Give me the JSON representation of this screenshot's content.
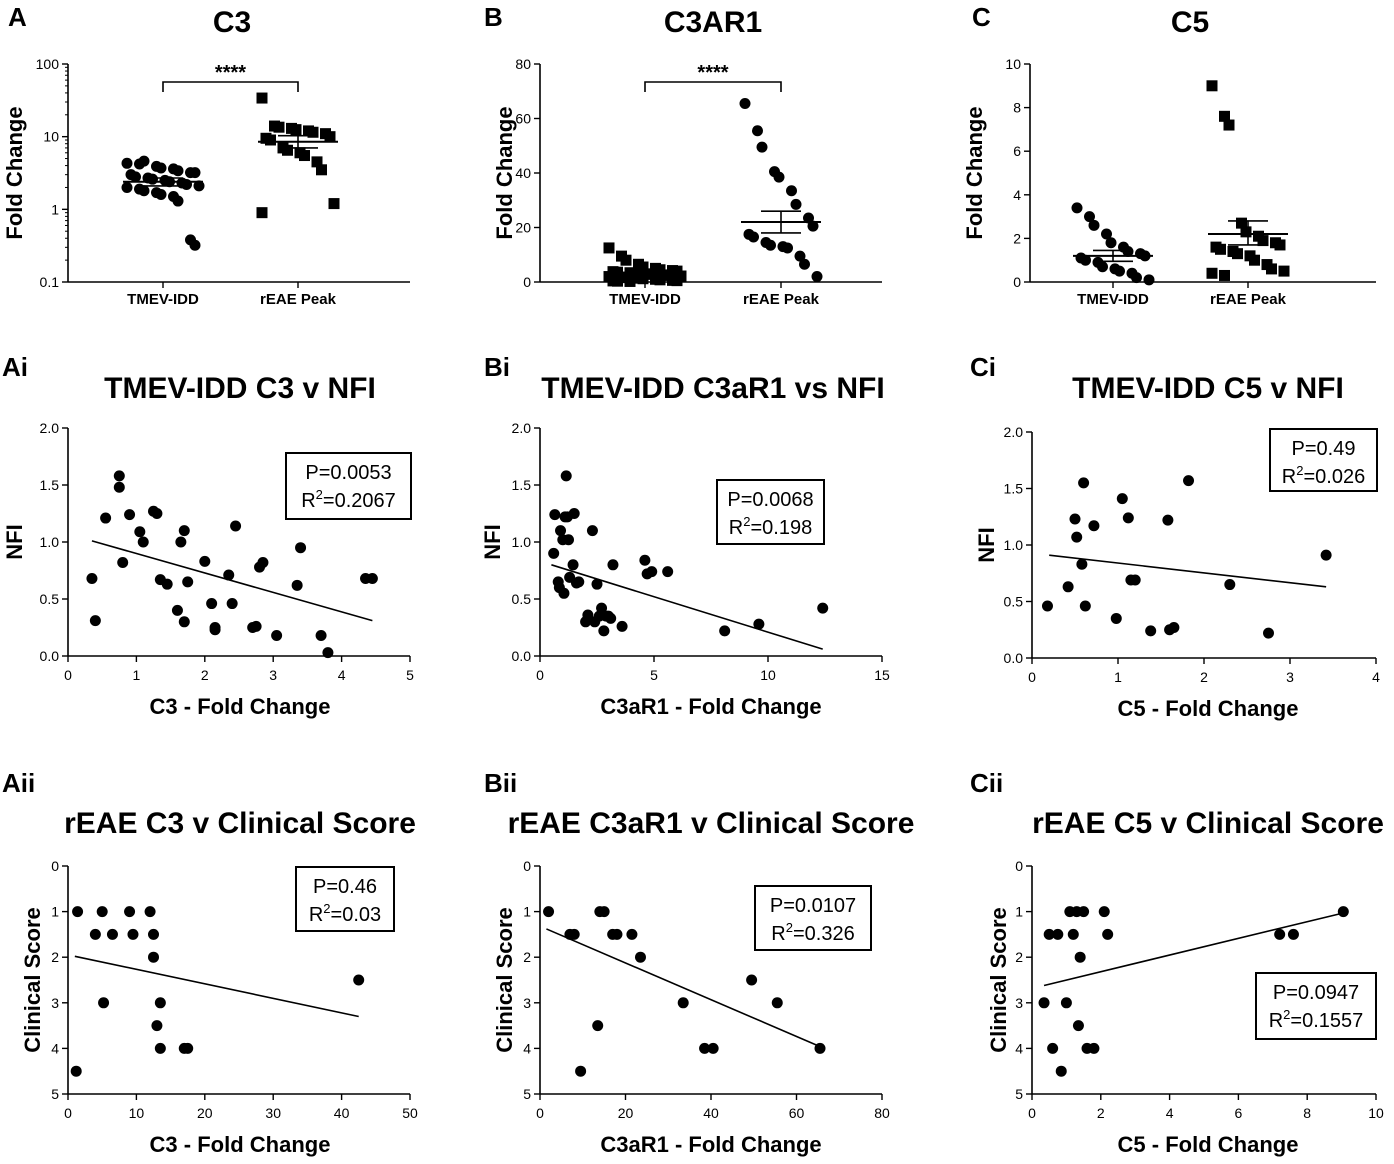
{
  "chart_data": [
    {
      "id": "A",
      "letter": "A",
      "type": "scatter",
      "title": "C3",
      "xlabel": "",
      "ylabel": "Fold Change",
      "yscale": "log",
      "ylim": [
        0.1,
        100
      ],
      "yticks": [
        0.1,
        1,
        10,
        100
      ],
      "ytick_labels": [
        "0.1",
        "1",
        "10",
        "100"
      ],
      "categories": [
        "TMEV-IDD",
        "rEAE Peak"
      ],
      "significance": "****",
      "series": [
        {
          "name": "TMEV-IDD",
          "marker": "circle",
          "mean": 2.4,
          "sem_low": 2.1,
          "sem_high": 2.7,
          "values": [
            4.3,
            4.2,
            4.6,
            3.9,
            3.7,
            3.6,
            3.4,
            3.2,
            3.2,
            3.0,
            2.8,
            2.7,
            2.6,
            2.5,
            2.4,
            2.3,
            2.2,
            2.1,
            2.0,
            1.9,
            1.8,
            1.7,
            1.6,
            1.5,
            1.3,
            0.38,
            0.32
          ]
        },
        {
          "name": "rEAE Peak",
          "marker": "square",
          "mean": 8.5,
          "sem_low": 7.0,
          "sem_high": 10.3,
          "values": [
            34,
            14,
            13.5,
            13,
            12.5,
            12,
            11.5,
            11,
            10,
            9.5,
            9,
            7,
            6.5,
            6,
            5.5,
            4.5,
            3.5,
            1.2,
            0.9
          ]
        }
      ]
    },
    {
      "id": "B",
      "letter": "B",
      "type": "scatter",
      "title": "C3AR1",
      "xlabel": "",
      "ylabel": "Fold Change",
      "yscale": "linear",
      "ylim": [
        0,
        80
      ],
      "yticks": [
        0,
        20,
        40,
        60,
        80
      ],
      "ytick_labels": [
        "0",
        "20",
        "40",
        "60",
        "80"
      ],
      "categories": [
        "TMEV-IDD",
        "rEAE Peak"
      ],
      "significance": "****",
      "series": [
        {
          "name": "TMEV-IDD",
          "marker": "square",
          "mean": 3.4,
          "sem_low": 2.6,
          "sem_high": 4.2,
          "values": [
            12.5,
            9.5,
            8.0,
            6.5,
            5.5,
            5.0,
            4.5,
            4.2,
            4.0,
            3.8,
            3.6,
            3.4,
            3.2,
            3.0,
            2.8,
            2.6,
            2.4,
            2.2,
            2.0,
            1.8,
            1.6,
            1.4,
            1.2,
            1.0,
            0.8,
            0.6,
            0.5,
            0.4,
            0.3,
            0.2
          ]
        },
        {
          "name": "rEAE Peak",
          "marker": "circle",
          "mean": 22,
          "sem_low": 18,
          "sem_high": 26,
          "values": [
            65.5,
            55.5,
            49.5,
            40.5,
            38.5,
            33.5,
            28.5,
            23.5,
            20.5,
            17.5,
            16.5,
            14.5,
            13.5,
            13.0,
            12.5,
            9.5,
            6.5,
            2.0
          ]
        }
      ]
    },
    {
      "id": "C",
      "letter": "C",
      "type": "scatter",
      "title": "C5",
      "xlabel": "",
      "ylabel": "Fold Change",
      "yscale": "linear",
      "ylim": [
        0,
        10
      ],
      "yticks": [
        0,
        2,
        4,
        6,
        8,
        10
      ],
      "ytick_labels": [
        "0",
        "2",
        "4",
        "6",
        "8",
        "10"
      ],
      "categories": [
        "TMEV-IDD",
        "rEAE Peak"
      ],
      "significance": "",
      "series": [
        {
          "name": "TMEV-IDD",
          "marker": "circle",
          "mean": 1.2,
          "sem_low": 0.95,
          "sem_high": 1.45,
          "values": [
            3.4,
            3.0,
            2.6,
            2.2,
            1.8,
            1.6,
            1.4,
            1.3,
            1.2,
            1.1,
            1.0,
            0.9,
            0.7,
            0.6,
            0.5,
            0.4,
            0.2,
            0.1
          ]
        },
        {
          "name": "rEAE Peak",
          "marker": "square",
          "mean": 2.2,
          "sem_low": 1.7,
          "sem_high": 2.8,
          "values": [
            9.0,
            7.6,
            7.2,
            2.7,
            2.3,
            2.1,
            1.9,
            1.8,
            1.7,
            1.6,
            1.5,
            1.4,
            1.3,
            1.2,
            1.0,
            0.8,
            0.6,
            0.5,
            0.4,
            0.3
          ]
        }
      ]
    },
    {
      "id": "Ai",
      "letter": "Ai",
      "type": "scatter",
      "title": "TMEV-IDD C3 v NFI",
      "xlabel": "C3 - Fold Change",
      "ylabel": "NFI",
      "xlim": [
        0,
        5
      ],
      "xticks": [
        0,
        1,
        2,
        3,
        4,
        5
      ],
      "xtick_labels": [
        "0",
        "1",
        "2",
        "3",
        "4",
        "5"
      ],
      "ylim": [
        0,
        2
      ],
      "yinvert": false,
      "yticks": [
        0,
        0.5,
        1,
        1.5,
        2
      ],
      "ytick_labels": [
        "0.0",
        "0.5",
        "1.0",
        "1.5",
        "2.0"
      ],
      "stat_p": "P=0.0053",
      "stat_r2_prefix": "R",
      "stat_r2_sup": "2",
      "stat_r2_value": "=0.2067",
      "stat_pos": "top-right",
      "fit": [
        [
          0.35,
          1.01
        ],
        [
          4.45,
          0.31
        ]
      ],
      "x": [
        0.35,
        0.4,
        0.55,
        0.75,
        0.75,
        0.8,
        0.9,
        1.05,
        1.1,
        1.25,
        1.3,
        1.35,
        1.45,
        1.6,
        1.65,
        1.7,
        1.7,
        1.75,
        2.0,
        2.1,
        2.15,
        2.15,
        2.35,
        2.4,
        2.45,
        2.7,
        2.75,
        2.8,
        2.85,
        3.05,
        3.35,
        3.4,
        3.7,
        3.8,
        4.35,
        4.45
      ],
      "y": [
        0.68,
        0.31,
        1.21,
        1.58,
        1.48,
        0.82,
        1.24,
        1.09,
        1.0,
        1.27,
        1.25,
        0.67,
        0.63,
        0.4,
        1.0,
        1.1,
        0.3,
        0.65,
        0.83,
        0.46,
        0.23,
        0.25,
        0.71,
        0.46,
        1.14,
        0.25,
        0.26,
        0.78,
        0.82,
        0.18,
        0.62,
        0.95,
        0.18,
        0.03,
        0.68,
        0.68
      ]
    },
    {
      "id": "Bi",
      "letter": "Bi",
      "type": "scatter",
      "title": "TMEV-IDD C3aR1 vs NFI",
      "xlabel": "C3aR1 - Fold Change",
      "ylabel": "NFI",
      "xlim": [
        0,
        15
      ],
      "xticks": [
        0,
        5,
        10,
        15
      ],
      "xtick_labels": [
        "0",
        "5",
        "10",
        "15"
      ],
      "ylim": [
        0,
        2
      ],
      "yinvert": false,
      "yticks": [
        0,
        0.5,
        1,
        1.5,
        2
      ],
      "ytick_labels": [
        "0.0",
        "0.5",
        "1.0",
        "1.5",
        "2.0"
      ],
      "stat_p": "P=0.0068",
      "stat_r2_prefix": "R",
      "stat_r2_sup": "2",
      "stat_r2_value": "=0.198",
      "stat_pos": "top-right",
      "fit": [
        [
          0.5,
          0.8
        ],
        [
          12.4,
          0.06
        ]
      ],
      "x": [
        0.6,
        0.65,
        0.8,
        0.85,
        0.9,
        1.0,
        1.05,
        1.1,
        1.15,
        1.2,
        1.25,
        1.3,
        1.45,
        1.5,
        1.6,
        1.7,
        2.0,
        2.1,
        2.3,
        2.4,
        2.5,
        2.6,
        2.7,
        2.8,
        2.9,
        3.0,
        3.1,
        3.2,
        3.6,
        4.6,
        4.7,
        4.9,
        5.6,
        8.1,
        9.6,
        12.4
      ],
      "y": [
        0.9,
        1.24,
        0.65,
        0.6,
        1.1,
        1.02,
        0.55,
        1.22,
        1.58,
        1.22,
        1.02,
        0.69,
        0.8,
        1.25,
        0.64,
        0.65,
        0.3,
        0.36,
        1.1,
        0.3,
        0.63,
        0.35,
        0.42,
        0.22,
        0.35,
        0.35,
        0.33,
        0.8,
        0.26,
        0.84,
        0.72,
        0.74,
        0.74,
        0.22,
        0.28,
        0.42
      ]
    },
    {
      "id": "Ci",
      "letter": "Ci",
      "type": "scatter",
      "title": "TMEV-IDD C5 v NFI",
      "xlabel": "C5 - Fold Change",
      "ylabel": "NFI",
      "xlim": [
        0,
        4
      ],
      "xticks": [
        0,
        1,
        2,
        3,
        4
      ],
      "xtick_labels": [
        "0",
        "1",
        "2",
        "3",
        "4"
      ],
      "ylim": [
        0,
        2
      ],
      "yinvert": false,
      "yticks": [
        0,
        0.5,
        1,
        1.5,
        2
      ],
      "ytick_labels": [
        "0.0",
        "0.5",
        "1.0",
        "1.5",
        "2.0"
      ],
      "stat_p": "P=0.49",
      "stat_r2_prefix": "R",
      "stat_r2_sup": "2",
      "stat_r2_value": "=0.026",
      "stat_pos": "top-right",
      "fit": [
        [
          0.2,
          0.91
        ],
        [
          3.42,
          0.63
        ]
      ],
      "x": [
        0.18,
        0.42,
        0.5,
        0.52,
        0.58,
        0.6,
        0.62,
        0.72,
        0.98,
        1.05,
        1.12,
        1.15,
        1.2,
        1.38,
        1.58,
        1.6,
        1.65,
        1.82,
        2.3,
        2.75,
        3.42
      ],
      "y": [
        0.46,
        0.63,
        1.23,
        1.07,
        0.83,
        1.55,
        0.46,
        1.17,
        0.35,
        1.41,
        1.24,
        0.69,
        0.69,
        0.24,
        1.22,
        0.25,
        0.27,
        1.57,
        0.65,
        0.22,
        0.91
      ]
    },
    {
      "id": "Aii",
      "letter": "Aii",
      "type": "scatter",
      "title": "rEAE C3 v Clinical Score",
      "xlabel": "C3 - Fold Change",
      "ylabel": "Clinical Score",
      "xlim": [
        0,
        50
      ],
      "xticks": [
        0,
        10,
        20,
        30,
        40,
        50
      ],
      "xtick_labels": [
        "0",
        "10",
        "20",
        "30",
        "40",
        "50"
      ],
      "ylim": [
        0,
        5
      ],
      "yinvert": true,
      "yticks": [
        0,
        1,
        2,
        3,
        4,
        5
      ],
      "ytick_labels": [
        "0",
        "1",
        "2",
        "3",
        "4",
        "5"
      ],
      "stat_p": "P=0.46",
      "stat_r2_prefix": "R",
      "stat_r2_sup": "2",
      "stat_r2_value": "=0.03",
      "stat_pos": "top-right",
      "fit": [
        [
          1.0,
          1.98
        ],
        [
          42.5,
          3.3
        ]
      ],
      "x": [
        1.2,
        1.4,
        4.0,
        5.0,
        5.2,
        6.5,
        9.0,
        9.5,
        12.0,
        12.5,
        12.5,
        13.0,
        13.5,
        13.5,
        17.0,
        17.5,
        42.5
      ],
      "y": [
        4.5,
        1.0,
        1.5,
        1.0,
        3.0,
        1.5,
        1.0,
        1.5,
        1.0,
        1.5,
        2.0,
        3.5,
        3.0,
        4.0,
        4.0,
        4.0,
        2.5
      ]
    },
    {
      "id": "Bii",
      "letter": "Bii",
      "type": "scatter",
      "title": "rEAE C3aR1 v Clinical Score",
      "xlabel": "C3aR1 - Fold Change",
      "ylabel": "Clinical Score",
      "xlim": [
        0,
        80
      ],
      "xticks": [
        0,
        20,
        40,
        60,
        80
      ],
      "xtick_labels": [
        "0",
        "20",
        "40",
        "60",
        "80"
      ],
      "ylim": [
        0,
        5
      ],
      "yinvert": true,
      "yticks": [
        0,
        1,
        2,
        3,
        4,
        5
      ],
      "ytick_labels": [
        "0",
        "1",
        "2",
        "3",
        "4",
        "5"
      ],
      "stat_p": "P=0.0107",
      "stat_r2_prefix": "R",
      "stat_r2_sup": "2",
      "stat_r2_value": "=0.326",
      "stat_pos": "top-right",
      "fit": [
        [
          1.5,
          1.38
        ],
        [
          66.0,
          3.98
        ]
      ],
      "x": [
        2.0,
        7.0,
        8.0,
        9.5,
        13.5,
        14.0,
        15.0,
        17.0,
        18.0,
        21.5,
        23.5,
        33.5,
        38.5,
        40.5,
        49.5,
        55.5,
        65.5
      ],
      "y": [
        1.0,
        1.5,
        1.5,
        4.5,
        3.5,
        1.0,
        1.0,
        1.5,
        1.5,
        1.5,
        2.0,
        3.0,
        4.0,
        4.0,
        2.5,
        3.0,
        4.0
      ]
    },
    {
      "id": "Cii",
      "letter": "Cii",
      "type": "scatter",
      "title": "rEAE C5 v Clinical Score",
      "xlabel": "C5 - Fold Change",
      "ylabel": "Clinical Score",
      "xlim": [
        0,
        10
      ],
      "xticks": [
        0,
        2,
        4,
        6,
        8,
        10
      ],
      "xtick_labels": [
        "0",
        "2",
        "4",
        "6",
        "8",
        "10"
      ],
      "ylim": [
        0,
        5
      ],
      "yinvert": true,
      "yticks": [
        0,
        1,
        2,
        3,
        4,
        5
      ],
      "ytick_labels": [
        "0",
        "1",
        "2",
        "3",
        "4",
        "5"
      ],
      "stat_p": "P=0.0947",
      "stat_r2_prefix": "R",
      "stat_r2_sup": "2",
      "stat_r2_value": "=0.1557",
      "stat_pos": "bottom-right",
      "fit": [
        [
          0.35,
          2.62
        ],
        [
          9.05,
          1.03
        ]
      ],
      "x": [
        0.35,
        0.5,
        0.6,
        0.75,
        0.85,
        1.0,
        1.1,
        1.2,
        1.3,
        1.35,
        1.4,
        1.5,
        1.6,
        1.8,
        2.1,
        2.2,
        7.2,
        7.6,
        9.05
      ],
      "y": [
        3.0,
        1.5,
        4.0,
        1.5,
        4.5,
        3.0,
        1.0,
        1.5,
        1.0,
        3.5,
        2.0,
        1.0,
        4.0,
        4.0,
        1.0,
        1.5,
        1.5,
        1.5,
        1.0
      ]
    }
  ]
}
